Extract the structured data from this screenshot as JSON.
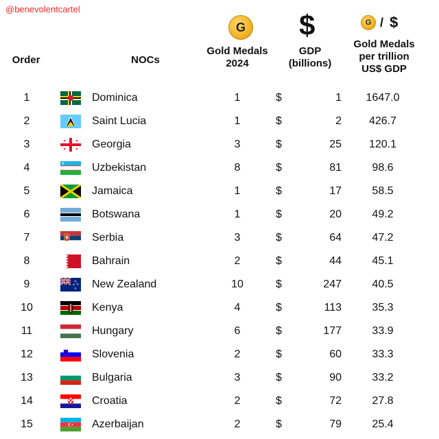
{
  "watermark": "@benevolentcartel",
  "headers": {
    "order": "Order",
    "nocs": "NOCs",
    "gold_line1": "Gold Medals",
    "gold_line2": "2024",
    "gdp_line1": "GDP",
    "gdp_line2": "(billions)",
    "ratio_line1": "Gold Medals",
    "ratio_line2": "per trillion",
    "ratio_line3": "US$ GDP",
    "coin_letter": "G",
    "dollar_symbol": "$",
    "slash": "/"
  },
  "chart_data": {
    "type": "table",
    "columns": [
      "Order",
      "NOCs",
      "Gold Medals 2024",
      "GDP (billions)",
      "Gold Medals per trillion US$ GDP"
    ],
    "currency_symbol": "$",
    "rows": [
      {
        "order": "1",
        "name": "Dominica",
        "flag": "dominica",
        "gold": "1",
        "gdp": "1",
        "ratio": "1647.0"
      },
      {
        "order": "2",
        "name": "Saint Lucia",
        "flag": "saint-lucia",
        "gold": "1",
        "gdp": "2",
        "ratio": "426.7"
      },
      {
        "order": "3",
        "name": "Georgia",
        "flag": "georgia",
        "gold": "3",
        "gdp": "25",
        "ratio": "120.1"
      },
      {
        "order": "4",
        "name": "Uzbekistan",
        "flag": "uzbekistan",
        "gold": "8",
        "gdp": "81",
        "ratio": "98.6"
      },
      {
        "order": "5",
        "name": "Jamaica",
        "flag": "jamaica",
        "gold": "1",
        "gdp": "17",
        "ratio": "58.5"
      },
      {
        "order": "6",
        "name": "Botswana",
        "flag": "botswana",
        "gold": "1",
        "gdp": "20",
        "ratio": "49.2"
      },
      {
        "order": "7",
        "name": "Serbia",
        "flag": "serbia",
        "gold": "3",
        "gdp": "64",
        "ratio": "47.2"
      },
      {
        "order": "8",
        "name": "Bahrain",
        "flag": "bahrain",
        "gold": "2",
        "gdp": "44",
        "ratio": "45.1"
      },
      {
        "order": "9",
        "name": "New Zealand",
        "flag": "new-zealand",
        "gold": "10",
        "gdp": "247",
        "ratio": "40.5"
      },
      {
        "order": "10",
        "name": "Kenya",
        "flag": "kenya",
        "gold": "4",
        "gdp": "113",
        "ratio": "35.3"
      },
      {
        "order": "11",
        "name": "Hungary",
        "flag": "hungary",
        "gold": "6",
        "gdp": "177",
        "ratio": "33.9"
      },
      {
        "order": "12",
        "name": "Slovenia",
        "flag": "slovenia",
        "gold": "2",
        "gdp": "60",
        "ratio": "33.3"
      },
      {
        "order": "13",
        "name": "Bulgaria",
        "flag": "bulgaria",
        "gold": "3",
        "gdp": "90",
        "ratio": "33.2"
      },
      {
        "order": "14",
        "name": "Croatia",
        "flag": "croatia",
        "gold": "2",
        "gdp": "72",
        "ratio": "27.8"
      },
      {
        "order": "15",
        "name": "Azerbaijan",
        "flag": "azerbaijan",
        "gold": "2",
        "gdp": "79",
        "ratio": "25.4"
      }
    ]
  }
}
